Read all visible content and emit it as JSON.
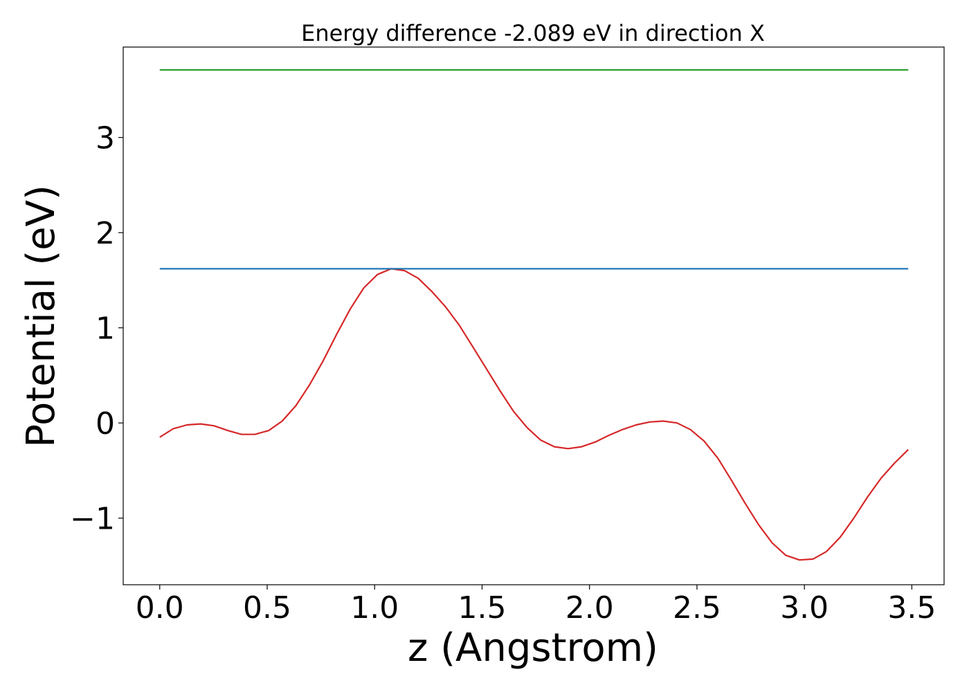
{
  "chart_data": {
    "type": "line",
    "title": "Energy difference -2.089 eV in direction X",
    "xlabel": "z (Angstrom)",
    "ylabel": "Potential (eV)",
    "xlim": [
      -0.17,
      3.65
    ],
    "ylim": [
      -1.7,
      3.95
    ],
    "xticks": [
      0.0,
      0.5,
      1.0,
      1.5,
      2.0,
      2.5,
      3.0,
      3.5
    ],
    "xtick_labels": [
      "0.0",
      "0.5",
      "1.0",
      "1.5",
      "2.0",
      "2.5",
      "3.0",
      "3.5"
    ],
    "yticks": [
      -1,
      0,
      1,
      2,
      3
    ],
    "ytick_labels": [
      "−1",
      "0",
      "1",
      "2",
      "3"
    ],
    "grid": false,
    "series": [
      {
        "color": "#d62728",
        "kind": "curve",
        "x": [
          0.0,
          0.063,
          0.127,
          0.19,
          0.253,
          0.317,
          0.38,
          0.443,
          0.507,
          0.57,
          0.633,
          0.697,
          0.76,
          0.823,
          0.887,
          0.95,
          1.013,
          1.077,
          1.14,
          1.203,
          1.267,
          1.33,
          1.393,
          1.457,
          1.52,
          1.583,
          1.647,
          1.71,
          1.773,
          1.837,
          1.9,
          1.963,
          2.027,
          2.09,
          2.153,
          2.217,
          2.28,
          2.343,
          2.407,
          2.47,
          2.533,
          2.597,
          2.66,
          2.723,
          2.787,
          2.85,
          2.913,
          2.977,
          3.04,
          3.103,
          3.167,
          3.23,
          3.293,
          3.357,
          3.42,
          3.483
        ],
        "y": [
          -0.15,
          -0.06,
          -0.02,
          -0.01,
          -0.03,
          -0.08,
          -0.12,
          -0.12,
          -0.08,
          0.02,
          0.18,
          0.4,
          0.65,
          0.93,
          1.2,
          1.42,
          1.56,
          1.62,
          1.6,
          1.52,
          1.38,
          1.22,
          1.03,
          0.8,
          0.57,
          0.34,
          0.12,
          -0.05,
          -0.18,
          -0.25,
          -0.27,
          -0.25,
          -0.2,
          -0.13,
          -0.07,
          -0.02,
          0.01,
          0.02,
          0.0,
          -0.07,
          -0.19,
          -0.37,
          -0.6,
          -0.84,
          -1.07,
          -1.26,
          -1.39,
          -1.44,
          -1.43,
          -1.35,
          -1.2,
          -1.0,
          -0.78,
          -0.58,
          -0.42,
          -0.28
        ]
      },
      {
        "color": "#1f77b4",
        "kind": "hline",
        "x": [
          0.0,
          3.483
        ],
        "y": [
          1.62,
          1.62
        ]
      },
      {
        "color": "#2ca02c",
        "kind": "hline",
        "x": [
          0.0,
          3.483
        ],
        "y": [
          3.71,
          3.71
        ]
      }
    ]
  }
}
